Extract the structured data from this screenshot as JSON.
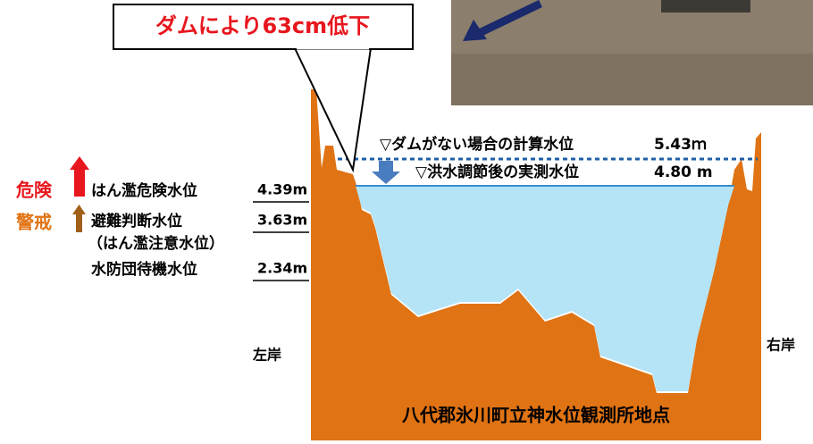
{
  "callout": "ダムにより63cm低下",
  "levels": {
    "no_dam": {
      "label": "▽ダムがない場合の計算水位",
      "value": "5.43ｍ"
    },
    "actual": {
      "label": "▽洪水調節後の実測水位",
      "value": "4.80 m"
    }
  },
  "legend": {
    "danger": {
      "tag": "危険",
      "label": "はん濫危険水位",
      "value": "4.39m"
    },
    "warning": {
      "tag": "警戒",
      "label": "避難判断水位",
      "note": "（はん濫注意水位）",
      "value": "3.63m"
    },
    "standby": {
      "label": "水防団待機水位",
      "value": "2.34m"
    }
  },
  "left_bank": "左岸",
  "right_bank": "右岸",
  "location": "八代郡氷川町立神水位観測所地点"
}
